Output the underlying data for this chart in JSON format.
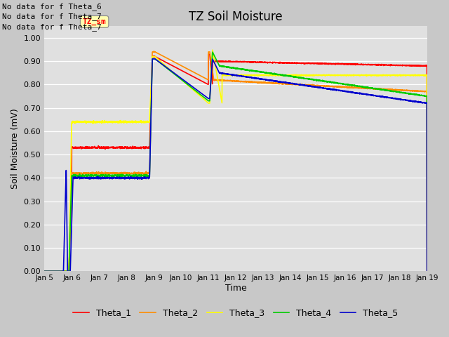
{
  "title": "TZ Soil Moisture",
  "ylabel": "Soil Moisture (mV)",
  "xlabel": "Time",
  "fig_facecolor": "#c8c8c8",
  "axes_facecolor": "#e0e0e0",
  "ylim": [
    0.0,
    1.05
  ],
  "yticks": [
    0.0,
    0.1,
    0.2,
    0.3,
    0.4,
    0.5,
    0.6,
    0.7,
    0.8,
    0.9,
    1.0
  ],
  "xtick_labels": [
    "Jan 5",
    "Jan 6",
    "Jan 7",
    "Jan 8",
    "Jan 9",
    "Jan 10",
    "Jan 11",
    "Jan 12",
    "Jan 13",
    "Jan 14",
    "Jan 15",
    "Jan 16",
    "Jan 17",
    "Jan 18",
    "Jan 19"
  ],
  "no_data_texts": [
    "No data for f Theta_6",
    "No data for f Theta_7",
    "No data for f Theta_7"
  ],
  "tz_sm_label": "TZ_sm",
  "legend_entries": [
    {
      "label": "Theta_1",
      "color": "#ff0000"
    },
    {
      "label": "Theta_2",
      "color": "#ff8c00"
    },
    {
      "label": "Theta_3",
      "color": "#ffff00"
    },
    {
      "label": "Theta_4",
      "color": "#00cc00"
    },
    {
      "label": "Theta_5",
      "color": "#0000cc"
    }
  ]
}
